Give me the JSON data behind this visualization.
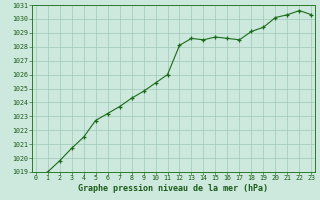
{
  "x": [
    0,
    1,
    2,
    3,
    4,
    5,
    6,
    7,
    8,
    9,
    10,
    11,
    12,
    13,
    14,
    15,
    16,
    17,
    18,
    19,
    20,
    21,
    22,
    23
  ],
  "y": [
    1018.7,
    1019.0,
    1019.8,
    1020.7,
    1021.5,
    1022.7,
    1023.2,
    1023.7,
    1024.3,
    1024.8,
    1025.4,
    1026.0,
    1028.1,
    1028.6,
    1028.5,
    1028.7,
    1028.6,
    1028.5,
    1029.1,
    1029.4,
    1030.1,
    1030.3,
    1030.6,
    1030.3
  ],
  "ylim": [
    1019,
    1031
  ],
  "yticks": [
    1019,
    1020,
    1021,
    1022,
    1023,
    1024,
    1025,
    1026,
    1027,
    1028,
    1029,
    1030,
    1031
  ],
  "xticks": [
    0,
    1,
    2,
    3,
    4,
    5,
    6,
    7,
    8,
    9,
    10,
    11,
    12,
    13,
    14,
    15,
    16,
    17,
    18,
    19,
    20,
    21,
    22,
    23
  ],
  "xlabel": "Graphe pression niveau de la mer (hPa)",
  "line_color": "#1a6b1a",
  "marker_color": "#1a6b1a",
  "bg_color": "#cde8dc",
  "grid_color": "#a0c8b8",
  "text_color": "#1a5c1a",
  "spine_color": "#2a7a2a"
}
